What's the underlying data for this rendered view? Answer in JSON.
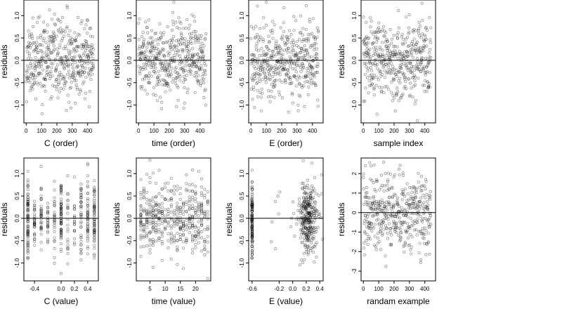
{
  "figure": {
    "background": "#ffffff",
    "point_color": "#000000",
    "line_color": "#000000"
  },
  "chart_data": [
    {
      "id": "p1",
      "type": "scatter",
      "xlabel": "C (order)",
      "ylabel": "residuals",
      "xlim": [
        -15,
        470
      ],
      "ylim": [
        -1.4,
        1.35
      ],
      "xticks": [
        0,
        100,
        200,
        300,
        400
      ],
      "xtick_labels": [
        "0",
        "100",
        "200",
        "300",
        "400"
      ],
      "yticks": [
        -1.0,
        -0.5,
        0.0,
        0.5,
        1.0
      ],
      "ytick_labels": [
        "-1.0",
        "-0.5",
        "0.0",
        "0.5",
        "1.0"
      ],
      "hline": 0,
      "grid": false,
      "gen": {
        "n": 440,
        "mode": "index",
        "ysd": 0.42,
        "seed": 11
      }
    },
    {
      "id": "p2",
      "type": "scatter",
      "xlabel": "time (order)",
      "ylabel": "residuals",
      "xlim": [
        -15,
        470
      ],
      "ylim": [
        -1.4,
        1.35
      ],
      "xticks": [
        0,
        100,
        200,
        300,
        400
      ],
      "xtick_labels": [
        "0",
        "100",
        "200",
        "300",
        "400"
      ],
      "yticks": [
        -1.0,
        -0.5,
        0.0,
        0.5,
        1.0
      ],
      "ytick_labels": [
        "-1.0",
        "-0.5",
        "0.0",
        "0.5",
        "1.0"
      ],
      "hline": 0,
      "grid": false,
      "gen": {
        "n": 440,
        "mode": "index",
        "ysd": 0.42,
        "seed": 23
      }
    },
    {
      "id": "p3",
      "type": "scatter",
      "xlabel": "E (order)",
      "ylabel": "residuals",
      "xlim": [
        -15,
        470
      ],
      "ylim": [
        -1.4,
        1.35
      ],
      "xticks": [
        0,
        100,
        200,
        300,
        400
      ],
      "xtick_labels": [
        "0",
        "100",
        "200",
        "300",
        "400"
      ],
      "yticks": [
        -1.0,
        -0.5,
        0.0,
        0.5,
        1.0
      ],
      "ytick_labels": [
        "-1.0",
        "-0.5",
        "0.0",
        "0.5",
        "1.0"
      ],
      "hline": 0,
      "grid": false,
      "gen": {
        "n": 440,
        "mode": "index",
        "ysd": 0.42,
        "seed": 37
      }
    },
    {
      "id": "p4",
      "type": "scatter",
      "xlabel": "sample index",
      "ylabel": "residuals",
      "xlim": [
        -15,
        470
      ],
      "ylim": [
        -1.4,
        1.35
      ],
      "xticks": [
        0,
        100,
        200,
        300,
        400
      ],
      "xtick_labels": [
        "0",
        "100",
        "200",
        "300",
        "400"
      ],
      "yticks": [
        -1.0,
        -0.5,
        0.0,
        0.5,
        1.0
      ],
      "ytick_labels": [
        "-1.0",
        "-0.5",
        "0.0",
        "0.5",
        "1.0"
      ],
      "hline": 0,
      "grid": false,
      "gen": {
        "n": 440,
        "mode": "index",
        "ysd": 0.42,
        "seed": 53
      }
    },
    {
      "id": "p5",
      "type": "scatter",
      "xlabel": "C (value)",
      "ylabel": "residuals",
      "xlim": [
        -0.56,
        0.56
      ],
      "ylim": [
        -1.4,
        1.35
      ],
      "xticks": [
        -0.4,
        0.0,
        0.2,
        0.4
      ],
      "xtick_labels": [
        "-0.4",
        "0.0",
        "0.2",
        "0.4"
      ],
      "yticks": [
        -1.0,
        -0.5,
        0.0,
        0.5,
        1.0
      ],
      "ytick_labels": [
        "-1.0",
        "-0.5",
        "0.0",
        "0.5",
        "1.0"
      ],
      "hline": 0,
      "grid": false,
      "gen": {
        "n": 440,
        "mode": "levels",
        "levels": [
          -0.5,
          -0.4,
          -0.3,
          -0.2,
          -0.1,
          0.0,
          0.1,
          0.2,
          0.3,
          0.4,
          0.5
        ],
        "weights": [
          3,
          2,
          1.5,
          1,
          1,
          3,
          1,
          1,
          1.5,
          2,
          3
        ],
        "ysd": 0.42,
        "seed": 71
      }
    },
    {
      "id": "p6",
      "type": "scatter",
      "xlabel": "time (value)",
      "ylabel": "residuals",
      "xlim": [
        0.5,
        25
      ],
      "ylim": [
        -1.4,
        1.35
      ],
      "xticks": [
        5,
        10,
        15,
        20
      ],
      "xtick_labels": [
        "5",
        "10",
        "15",
        "20"
      ],
      "yticks": [
        -1.0,
        -0.5,
        0.0,
        0.5,
        1.0
      ],
      "ytick_labels": [
        "-1.0",
        "-0.5",
        "0.0",
        "0.5",
        "1.0"
      ],
      "hline": 0,
      "grid": false,
      "gen": {
        "n": 440,
        "mode": "levels",
        "levels": [
          2,
          3,
          4,
          5,
          6,
          7,
          8,
          9,
          10,
          11,
          12,
          13,
          14,
          15,
          16,
          17,
          18,
          19,
          20,
          21,
          22,
          23,
          24
        ],
        "ysd": 0.42,
        "seed": 89
      }
    },
    {
      "id": "p7",
      "type": "scatter",
      "xlabel": "E (value)",
      "ylabel": "residuals",
      "xlim": [
        -0.65,
        0.45
      ],
      "ylim": [
        -1.4,
        1.35
      ],
      "xticks": [
        -0.6,
        -0.2,
        0.0,
        0.2,
        0.4
      ],
      "xtick_labels": [
        "-0.6",
        "-0.2",
        "0.0",
        "0.2",
        "0.4"
      ],
      "yticks": [
        -1.0,
        -0.5,
        0.0,
        0.5,
        1.0
      ],
      "ytick_labels": [
        "-1.0",
        "-0.5",
        "0.0",
        "0.5",
        "1.0"
      ],
      "hline": 0,
      "grid": false,
      "gen": {
        "n": 440,
        "mode": "clusters",
        "clusters": [
          {
            "x": -0.6,
            "sd": 0.003,
            "w": 0.28
          },
          {
            "x": 0.23,
            "sd": 0.07,
            "w": 0.68
          },
          {
            "x": -0.1,
            "sd": 0.2,
            "w": 0.04
          }
        ],
        "ysd": 0.42,
        "seed": 97
      }
    },
    {
      "id": "p8",
      "type": "scatter",
      "xlabel": "randam example",
      "ylabel": "residuals",
      "xlim": [
        -15,
        470
      ],
      "ylim": [
        -3.5,
        2.8
      ],
      "xticks": [
        0,
        100,
        200,
        300,
        400
      ],
      "xtick_labels": [
        "0",
        "100",
        "200",
        "300",
        "400"
      ],
      "yticks": [
        -3,
        -2,
        -1,
        0,
        1,
        2
      ],
      "ytick_labels": [
        "-3",
        "-2",
        "-1",
        "0",
        "1",
        "2"
      ],
      "hline": 0,
      "grid": false,
      "gen": {
        "n": 440,
        "mode": "index",
        "ysd": 1.0,
        "seed": 131
      }
    }
  ]
}
